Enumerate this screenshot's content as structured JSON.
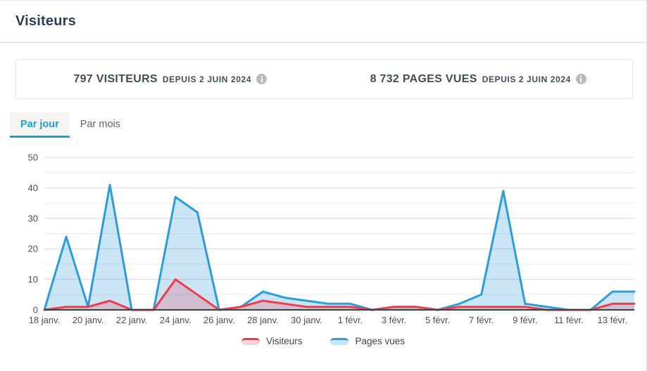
{
  "panel": {
    "title": "Visiteurs"
  },
  "stats": [
    {
      "value": "797 VISITEURS",
      "suffix": "DEPUIS 2 JUIN 2024"
    },
    {
      "value": "8 732 PAGES VUES",
      "suffix": "DEPUIS 2 JUIN 2024"
    }
  ],
  "tabs": [
    {
      "label": "Par jour",
      "active": true
    },
    {
      "label": "Par mois",
      "active": false
    }
  ],
  "chart_data": {
    "type": "area",
    "x": [
      "18 janv.",
      "19 janv.",
      "20 janv.",
      "21 janv.",
      "22 janv.",
      "23 janv.",
      "24 janv.",
      "25 janv.",
      "26 janv.",
      "27 janv.",
      "28 janv.",
      "29 janv.",
      "30 janv.",
      "31 janv.",
      "1 févr.",
      "2 févr.",
      "3 févr.",
      "4 févr.",
      "5 févr.",
      "6 févr.",
      "7 févr.",
      "8 févr.",
      "9 févr.",
      "10 févr.",
      "11 févr.",
      "12 févr.",
      "13 févr.",
      "14 févr."
    ],
    "x_tick_every": 2,
    "series": [
      {
        "name": "Visiteurs",
        "color": "#ef3b4c",
        "fill": "rgba(239,59,76,0.22)",
        "values": [
          0,
          1,
          1,
          3,
          0,
          0,
          10,
          5,
          0,
          1,
          3,
          2,
          1,
          1,
          1,
          0,
          1,
          1,
          0,
          1,
          1,
          1,
          1,
          0,
          0,
          0,
          2,
          2
        ]
      },
      {
        "name": "Pages vues",
        "color": "#2d9cdb",
        "fill": "rgba(45,156,219,0.26)",
        "values": [
          0,
          24,
          1,
          41,
          0,
          0,
          37,
          32,
          0,
          1,
          6,
          4,
          3,
          2,
          2,
          0,
          1,
          1,
          0,
          2,
          5,
          39,
          2,
          1,
          0,
          0,
          6,
          6
        ]
      }
    ],
    "ylim": [
      0,
      50
    ],
    "y_major_step": 10,
    "y_minor_step": 5,
    "grid": true,
    "legend_position": "bottom",
    "colors": {
      "grid_major": "#d8d8d8",
      "grid_minor": "#ececec",
      "axis_line": "#3a4045",
      "tick_text": "#454f56"
    }
  },
  "legend": [
    {
      "label": "Visiteurs",
      "color": "#ef3b4c",
      "fill": "#fbd4d8"
    },
    {
      "label": "Pages vues",
      "color": "#2d9cdb",
      "fill": "#c8e5f5"
    }
  ]
}
